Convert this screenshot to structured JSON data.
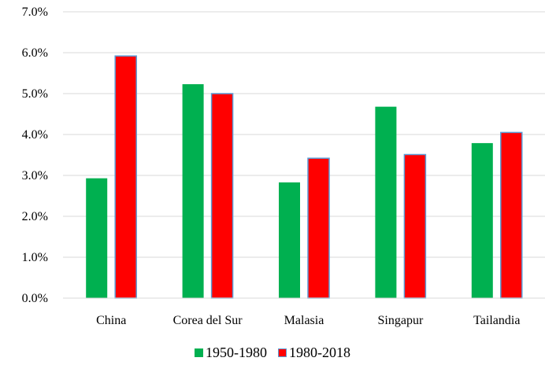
{
  "chart_data": {
    "type": "bar",
    "title": "",
    "xlabel": "",
    "ylabel": "",
    "categories": [
      "China",
      "Corea del Sur",
      "Malasia",
      "Singapur",
      "Tailandia"
    ],
    "series": [
      {
        "name": "1950-1980",
        "color": "#00b050",
        "values": [
          2.93,
          5.23,
          2.83,
          4.68,
          3.79
        ]
      },
      {
        "name": "1980-2018",
        "color": "#ff0000",
        "border": "#5b9bd5",
        "values": [
          5.92,
          5.0,
          3.42,
          3.51,
          4.05
        ]
      }
    ],
    "ylim": [
      0,
      7
    ],
    "yticks": [
      "0.0%",
      "1.0%",
      "2.0%",
      "3.0%",
      "4.0%",
      "5.0%",
      "6.0%",
      "7.0%"
    ],
    "grid": true,
    "legend_position": "bottom"
  }
}
